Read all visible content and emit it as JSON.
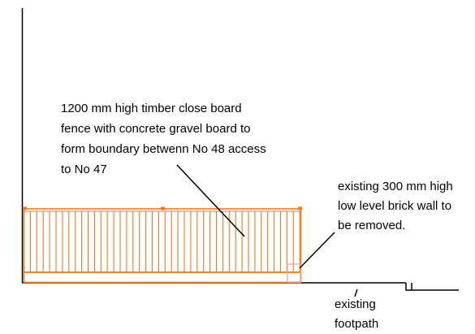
{
  "annotations": {
    "fence_note": [
      "1200 mm high timber close board",
      "fence with concrete gravel board to",
      "form boundary betwenn No 48 access",
      "to No 47"
    ],
    "wall_note": [
      "existing 300 mm high",
      "low level brick wall to",
      "be removed."
    ],
    "footpath_note": [
      "existing",
      "footpath"
    ]
  },
  "colors": {
    "line": "#000000",
    "fence": "#f07a1e",
    "wall": "#f2a3a3",
    "background": "#ffffff"
  }
}
